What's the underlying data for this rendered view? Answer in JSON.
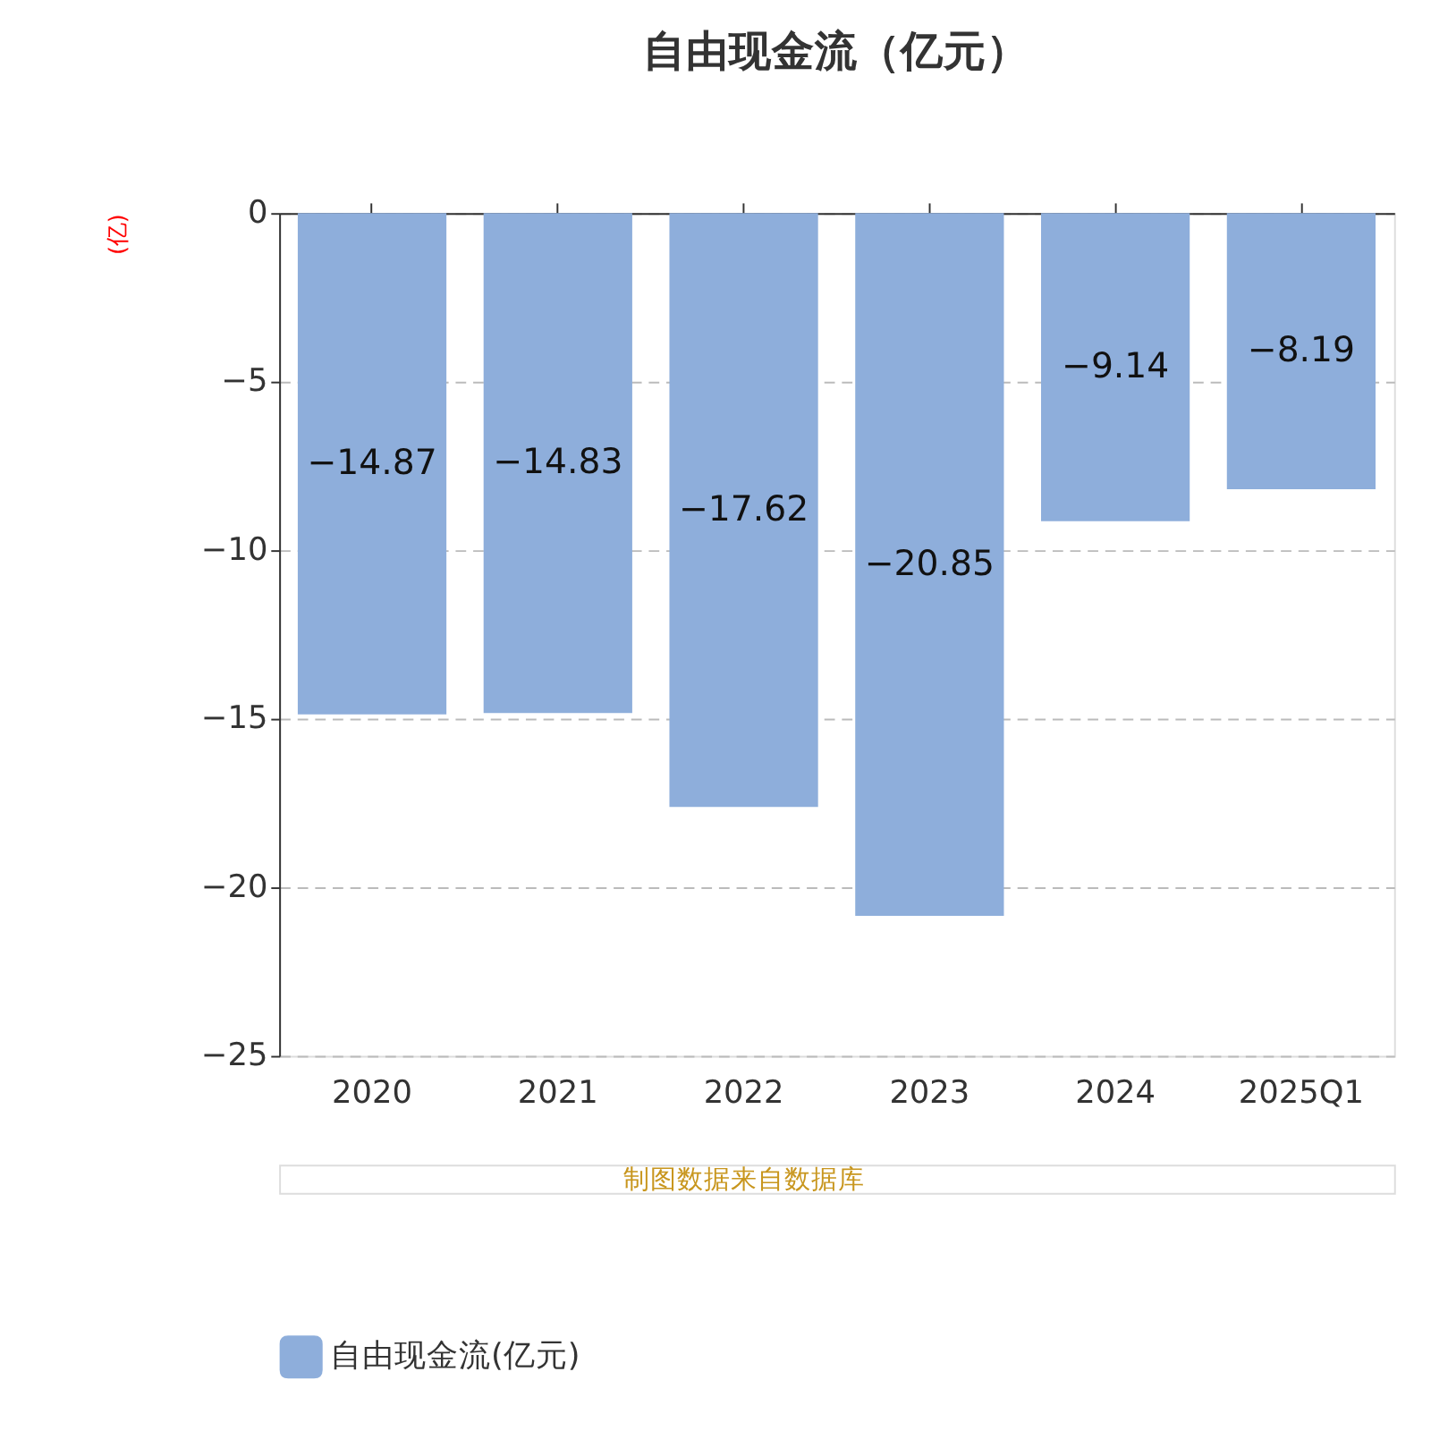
{
  "chart_data": {
    "type": "bar",
    "title": "自由现金流（亿元）",
    "ylabel": "(亿)",
    "categories": [
      "2020",
      "2021",
      "2022",
      "2023",
      "2024",
      "2025Q1"
    ],
    "series": [
      {
        "name": "自由现金流(亿元)",
        "color": "#8eaedb",
        "values": [
          -14.87,
          -14.83,
          -17.62,
          -20.85,
          -9.14,
          -8.19
        ]
      }
    ],
    "ylim": [
      -25,
      0
    ],
    "yticks": [
      -25,
      -20,
      -15,
      -10,
      -5,
      0
    ],
    "grid": "y",
    "data_labels": true,
    "legend": "bottom",
    "annotations": [
      "制图数据来自数据库"
    ]
  }
}
